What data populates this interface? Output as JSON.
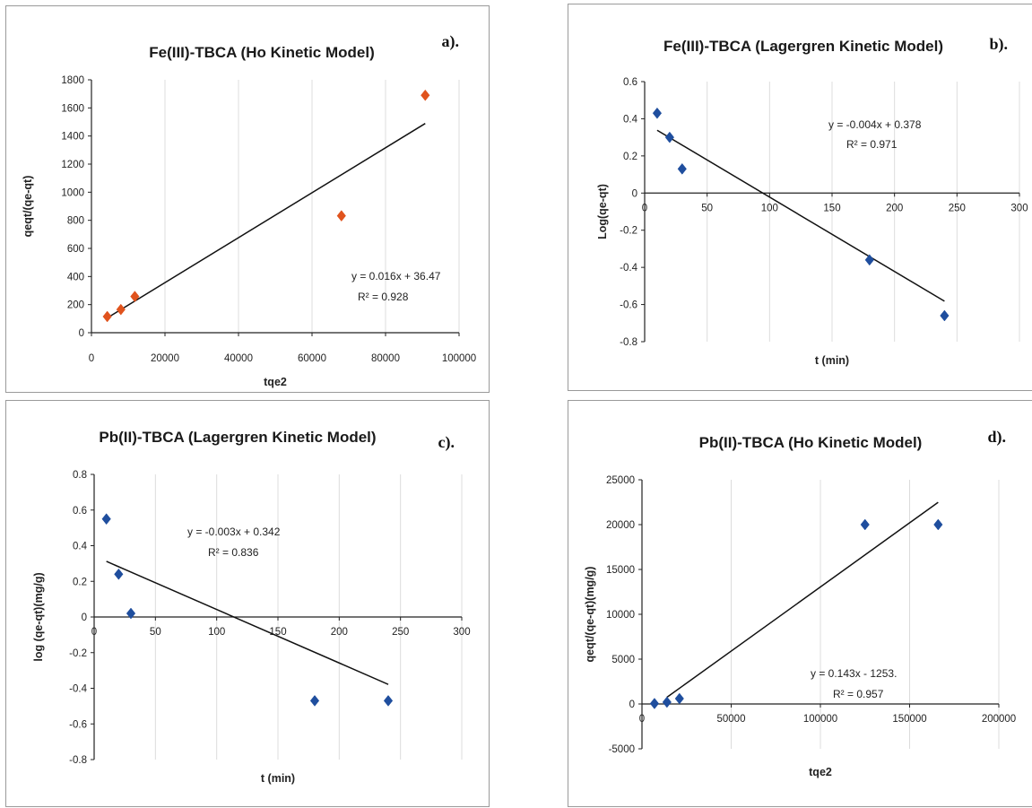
{
  "chart_data": [
    {
      "type": "scatter",
      "panel_label": "a).",
      "title": "Fe(III)-TBCA (Ho Kinetic Model)",
      "xlabel": "tqe2",
      "ylabel": "qeqt/(qe-qt)",
      "xlim": [
        0,
        100000
      ],
      "ylim": [
        0,
        1800
      ],
      "xticks": [
        0,
        20000,
        40000,
        60000,
        80000,
        100000
      ],
      "yticks": [
        0,
        200,
        400,
        600,
        800,
        1000,
        1200,
        1400,
        1600,
        1800
      ],
      "marker_color": "#e0531d",
      "series": [
        {
          "points": [
            {
              "x": 4300,
              "y": 115
            },
            {
              "x": 8000,
              "y": 165
            },
            {
              "x": 11800,
              "y": 258
            },
            {
              "x": 68000,
              "y": 832
            },
            {
              "x": 90800,
              "y": 1690
            }
          ]
        }
      ],
      "trendline": {
        "slope": 0.016,
        "intercept": 36.47,
        "x_range": [
          4300,
          90800
        ]
      },
      "equation": "y = 0.016x + 36.47",
      "r2": "R² = 0.928"
    },
    {
      "type": "scatter",
      "panel_label": "b).",
      "title": "Fe(III)-TBCA (Lagergren Kinetic Model)",
      "xlabel": "t (min)",
      "ylabel": "Log(qe-qt)",
      "xlim": [
        0,
        300
      ],
      "ylim": [
        -0.8,
        0.6
      ],
      "xticks": [
        0,
        50,
        100,
        150,
        200,
        250,
        300
      ],
      "yticks": [
        -0.8,
        -0.6,
        -0.4,
        -0.2,
        0,
        0.2,
        0.4,
        0.6
      ],
      "marker_color": "#1f4e9e",
      "series": [
        {
          "points": [
            {
              "x": 10,
              "y": 0.43
            },
            {
              "x": 20,
              "y": 0.3
            },
            {
              "x": 30,
              "y": 0.13
            },
            {
              "x": 180,
              "y": -0.36
            },
            {
              "x": 240,
              "y": -0.66
            }
          ]
        }
      ],
      "trendline": {
        "slope": -0.004,
        "intercept": 0.378,
        "x_range": [
          10,
          240
        ]
      },
      "equation": "y = -0.004x + 0.378",
      "r2": "R² = 0.971"
    },
    {
      "type": "scatter",
      "panel_label": "c).",
      "title": "Pb(II)-TBCA (Lagergren Kinetic Model)",
      "xlabel": "t (min)",
      "ylabel": "log (qe-qt)(mg/g)",
      "xlim": [
        0,
        300
      ],
      "ylim": [
        -0.8,
        0.8
      ],
      "xticks": [
        0,
        50,
        100,
        150,
        200,
        250,
        300
      ],
      "yticks": [
        -0.8,
        -0.6,
        -0.4,
        -0.2,
        0,
        0.2,
        0.4,
        0.6,
        0.8
      ],
      "marker_color": "#1f4e9e",
      "series": [
        {
          "points": [
            {
              "x": 10,
              "y": 0.55
            },
            {
              "x": 20,
              "y": 0.24
            },
            {
              "x": 30,
              "y": 0.02
            },
            {
              "x": 180,
              "y": -0.47
            },
            {
              "x": 240,
              "y": -0.47
            }
          ]
        }
      ],
      "trendline": {
        "slope": -0.003,
        "intercept": 0.342,
        "x_range": [
          10,
          240
        ]
      },
      "equation": "y = -0.003x + 0.342",
      "r2": "R² = 0.836"
    },
    {
      "type": "scatter",
      "panel_label": "d).",
      "title": "Pb(II)-TBCA (Ho Kinetic Model)",
      "xlabel": "tqe2",
      "ylabel": "qeqt/(qe-qt)(mg/g)",
      "xlim": [
        0,
        200000
      ],
      "ylim": [
        -5000,
        25000
      ],
      "xticks": [
        0,
        50000,
        100000,
        150000,
        200000
      ],
      "yticks": [
        -5000,
        0,
        5000,
        10000,
        15000,
        20000,
        25000
      ],
      "marker_color": "#1f4e9e",
      "series": [
        {
          "points": [
            {
              "x": 7000,
              "y": 50
            },
            {
              "x": 14000,
              "y": 200
            },
            {
              "x": 21000,
              "y": 600
            },
            {
              "x": 125000,
              "y": 20000
            },
            {
              "x": 166000,
              "y": 20000
            }
          ]
        }
      ],
      "trendline": {
        "slope": 0.143,
        "intercept": -1253,
        "x_range": [
          14000,
          166000
        ]
      },
      "equation": "y = 0.143x - 1253.",
      "r2": "R² = 0.957"
    }
  ]
}
